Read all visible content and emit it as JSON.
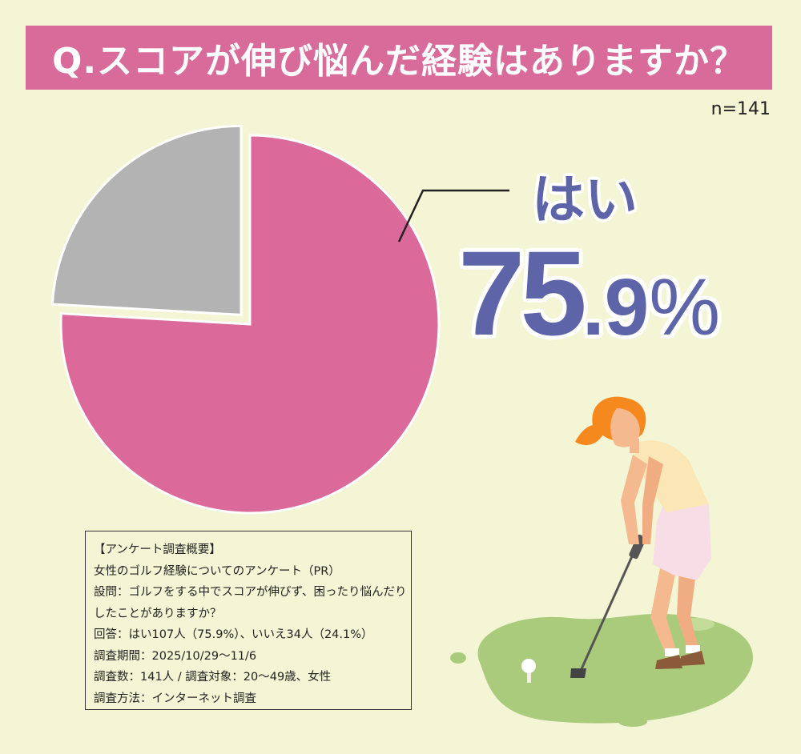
{
  "title": "Q.スコアが伸び悩んだ経験はありますか？",
  "sample_size": "n=141",
  "colors": {
    "title_bg": "#d96b9a",
    "yes": "#db6a9b",
    "no": "#b3b3b3",
    "accent_text": "#5d64a8",
    "background": "#f3f5d4"
  },
  "chart_data": {
    "type": "pie",
    "title": "Q.スコアが伸び悩んだ経験はありますか？",
    "slices": [
      {
        "label": "はい",
        "value": 75.9,
        "count": 107,
        "color": "#db6a9b",
        "exploded": false
      },
      {
        "label": "いいえ",
        "value": 24.1,
        "count": 34,
        "color": "#b3b3b3",
        "exploded": true
      }
    ],
    "callout": {
      "label": "はい",
      "value_int": "75",
      "value_dec": ".9",
      "unit": "%"
    }
  },
  "survey": {
    "heading": "【アンケート調査概要】",
    "lines": [
      "女性のゴルフ経験についてのアンケート（PR）",
      "設問：ゴルフをする中でスコアが伸びず、困ったり悩んだり",
      "したことがありますか？",
      "回答：はい107人（75.9%）、いいえ34人（24.1%）",
      "調査期間：2025/10/29〜11/6",
      "調査数：141人 / 調査対象：20〜49歳、女性",
      "調査方法：インターネット調査"
    ]
  },
  "illustration": {
    "subject": "female-golfer-illustration"
  }
}
